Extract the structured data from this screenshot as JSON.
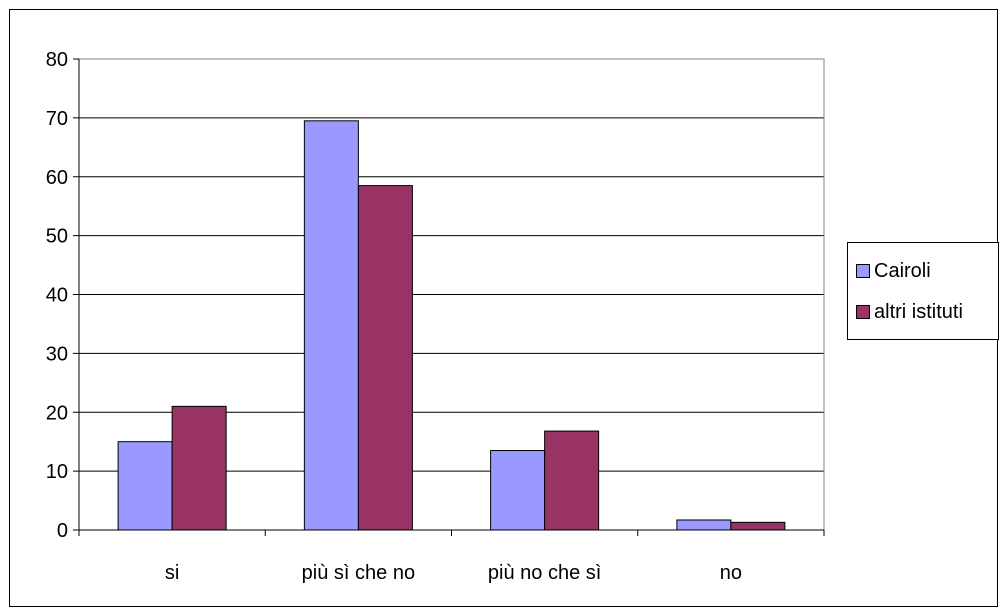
{
  "chart_data": {
    "type": "bar",
    "categories": [
      "si",
      "più sì che no",
      "più no che sì",
      "no"
    ],
    "series": [
      {
        "name": "Cairoli",
        "values": [
          15,
          69.5,
          13.5,
          1.7
        ],
        "color": "#9999ff"
      },
      {
        "name": "altri istituti",
        "values": [
          21,
          58.5,
          16.8,
          1.3
        ],
        "color": "#993366"
      }
    ],
    "ylim": [
      0,
      80
    ],
    "yticks": [
      "0",
      "10",
      "20",
      "30",
      "40",
      "50",
      "60",
      "70",
      "80"
    ],
    "grid": true,
    "legend_position": "right",
    "plot_background": "#ffffff"
  }
}
